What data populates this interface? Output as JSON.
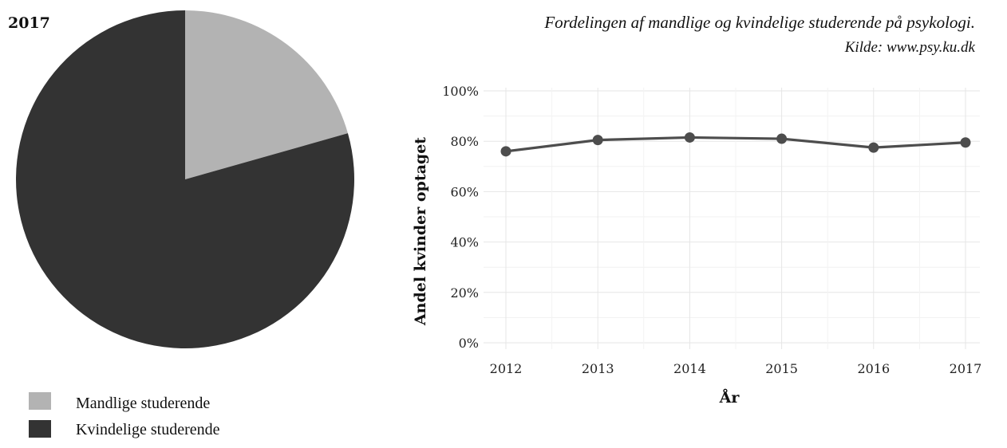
{
  "chart_data": [
    {
      "type": "pie",
      "title": "2017",
      "slices": [
        {
          "name": "Mandlige studerende",
          "value": 20.6,
          "color": "#b3b3b3"
        },
        {
          "name": "Kvindelige studerende",
          "value": 79.4,
          "color": "#333333"
        }
      ],
      "legend": "bottom-left"
    },
    {
      "type": "line",
      "title": "Fordelingen af mandlige og kvindelige studerende på psykologi.",
      "subtitle": "Kilde: www.psy.ku.dk",
      "xlabel": "År",
      "ylabel": "Andel kvinder optaget",
      "x": [
        "2012",
        "2013",
        "2014",
        "2015",
        "2016",
        "2017"
      ],
      "series": [
        {
          "values": [
            76,
            80.5,
            81.5,
            81,
            77.5,
            79.5
          ],
          "color": "#4d4d4d"
        }
      ],
      "ylim": [
        0,
        100
      ],
      "yticks": [
        "0%",
        "20%",
        "40%",
        "60%",
        "80%",
        "100%"
      ],
      "grid": true
    }
  ]
}
